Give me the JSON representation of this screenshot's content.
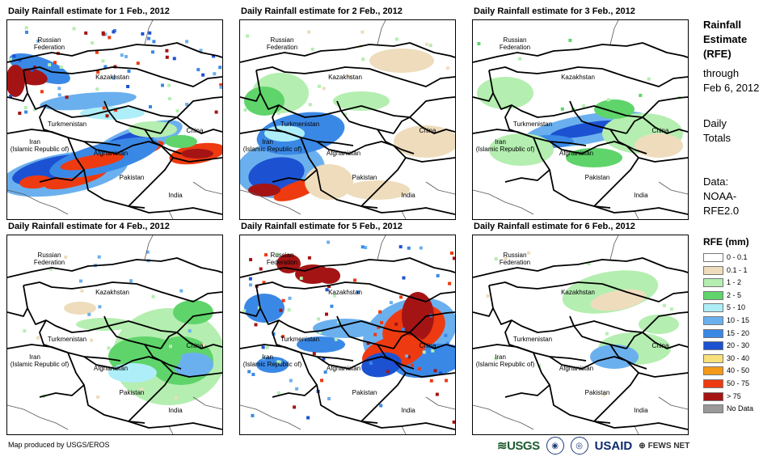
{
  "panels": [
    {
      "title": "Daily Rainfall estimate for 1 Feb., 2012"
    },
    {
      "title": "Daily Rainfall estimate for 2 Feb., 2012"
    },
    {
      "title": "Daily Rainfall estimate for 3 Feb., 2012"
    },
    {
      "title": "Daily Rainfall estimate for 4 Feb., 2012"
    },
    {
      "title": "Daily Rainfall estimate for 5 Feb., 2012"
    },
    {
      "title": "Daily Rainfall estimate for 6 Feb., 2012"
    }
  ],
  "map_labels": {
    "russia_1": "Russian",
    "russia_2": "Federation",
    "kazakhstan": "Kazakhstan",
    "turkmenistan": "Turkmenistan",
    "iran_1": "Iran",
    "iran_2": "(Islamic Republic of)",
    "afghanistan": "Afghanistan",
    "pakistan": "Pakistan",
    "india": "India",
    "china": "China"
  },
  "side": {
    "title_1": "Rainfall",
    "title_2": "Estimate",
    "title_3": "(RFE)",
    "through": "through",
    "date": "Feb 6, 2012",
    "daily": "Daily",
    "totals": "Totals",
    "data_label": "Data:",
    "data_1": "NOAA-",
    "data_2": "RFE2.0"
  },
  "legend": {
    "title": "RFE (mm)",
    "items": [
      {
        "label": "0 - 0.1",
        "color": "#ffffff"
      },
      {
        "label": "0.1 - 1",
        "color": "#eedcbc"
      },
      {
        "label": "1 - 2",
        "color": "#b4eeb0"
      },
      {
        "label": "2 - 5",
        "color": "#5fd46a"
      },
      {
        "label": "5 - 10",
        "color": "#aeeef8"
      },
      {
        "label": "10 - 15",
        "color": "#6bb0ee"
      },
      {
        "label": "15 - 20",
        "color": "#3a88e6"
      },
      {
        "label": "20 - 30",
        "color": "#1c52d2"
      },
      {
        "label": "30 - 40",
        "color": "#f8e07a"
      },
      {
        "label": "40 - 50",
        "color": "#f49a18"
      },
      {
        "label": "50 - 75",
        "color": "#ee3a10"
      },
      {
        "label": "> 75",
        "color": "#a41414"
      },
      {
        "label": "No Data",
        "color": "#999999"
      }
    ]
  },
  "footer": "Map produced by USGS/EROS",
  "logos": {
    "usgs": "USGS",
    "usaid": "USAID",
    "fews": "FEWS NET"
  }
}
